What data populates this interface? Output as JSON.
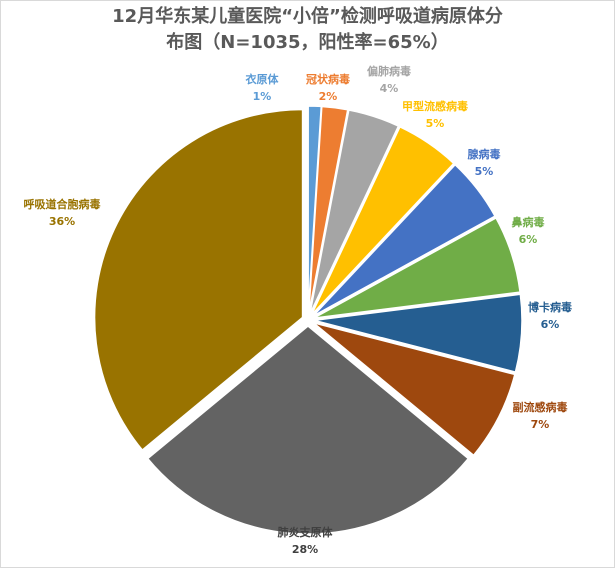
{
  "chart_data": {
    "type": "pie",
    "title_lines": [
      "12月华东某儿童医院“小倍”检测呼吸道病原体分",
      "布图（N=1035，阳性率=65%）"
    ],
    "slices": [
      {
        "name": "衣原体",
        "value": 1,
        "label": "1%",
        "color": "#5b9bd5"
      },
      {
        "name": "冠状病毒",
        "value": 2,
        "label": "2%",
        "color": "#ed7d31"
      },
      {
        "name": "偏肺病毒",
        "value": 4,
        "label": "4%",
        "color": "#a5a5a5"
      },
      {
        "name": "甲型流感病毒",
        "value": 5,
        "label": "5%",
        "color": "#ffc000"
      },
      {
        "name": "腺病毒",
        "value": 5,
        "label": "5%",
        "color": "#4472c4"
      },
      {
        "name": "鼻病毒",
        "value": 6,
        "label": "6%",
        "color": "#70ad47"
      },
      {
        "name": "博卡病毒",
        "value": 6,
        "label": "6%",
        "color": "#255e91"
      },
      {
        "name": "副流感病毒",
        "value": 7,
        "label": "7%",
        "color": "#9e480e"
      },
      {
        "name": "肺炎支原体",
        "value": 28,
        "label": "28%",
        "color": "#636363"
      },
      {
        "name": "呼吸道合胞病毒",
        "value": 36,
        "label": "36%",
        "color": "#997300"
      }
    ],
    "label_colors": [
      "#5b9bd5",
      "#ed7d31",
      "#a5a5a5",
      "#ffc000",
      "#4472c4",
      "#70ad47",
      "#255e91",
      "#9e480e",
      "#404040",
      "#997300"
    ],
    "legend": "none"
  }
}
